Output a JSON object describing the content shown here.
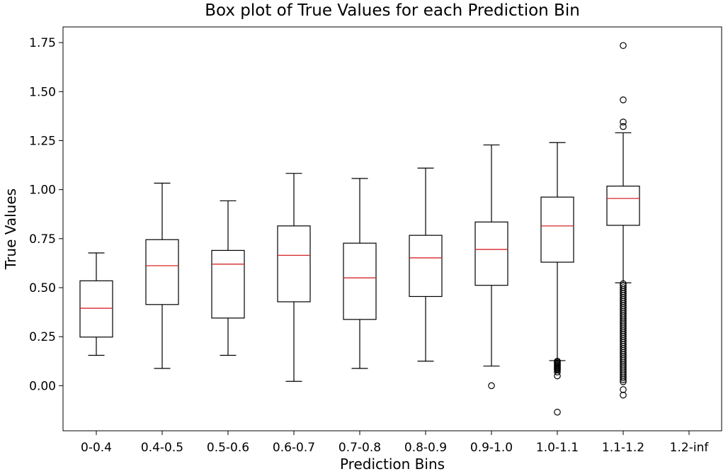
{
  "chart_data": {
    "type": "box",
    "title": "Box plot of True Values for each Prediction Bin",
    "xlabel": "Prediction Bins",
    "ylabel": "True Values",
    "ylim": [
      -0.23,
      1.83
    ],
    "yticks": [
      "0.00",
      "0.25",
      "0.50",
      "0.75",
      "1.00",
      "1.25",
      "1.50",
      "1.75"
    ],
    "ytick_values": [
      0,
      0.25,
      0.5,
      0.75,
      1.0,
      1.25,
      1.5,
      1.75
    ],
    "grid": false,
    "colors": {
      "box": "#000000",
      "median": "#d62728"
    },
    "categories": [
      "0-0.4",
      "0.4-0.5",
      "0.5-0.6",
      "0.6-0.7",
      "0.7-0.8",
      "0.8-0.9",
      "0.9-1.0",
      "1.0-1.1",
      "1.1-1.2",
      "1.2-inf"
    ],
    "boxes": [
      {
        "category": "0-0.4",
        "whisker_low": 0.155,
        "q1": 0.248,
        "median": 0.395,
        "q3": 0.535,
        "whisker_high": 0.677,
        "outliers": []
      },
      {
        "category": "0.4-0.5",
        "whisker_low": 0.088,
        "q1": 0.414,
        "median": 0.612,
        "q3": 0.745,
        "whisker_high": 1.033,
        "outliers": []
      },
      {
        "category": "0.5-0.6",
        "whisker_low": 0.155,
        "q1": 0.345,
        "median": 0.62,
        "q3": 0.69,
        "whisker_high": 0.943,
        "outliers": []
      },
      {
        "category": "0.6-0.7",
        "whisker_low": 0.022,
        "q1": 0.428,
        "median": 0.665,
        "q3": 0.815,
        "whisker_high": 1.083,
        "outliers": []
      },
      {
        "category": "0.7-0.8",
        "whisker_low": 0.088,
        "q1": 0.338,
        "median": 0.55,
        "q3": 0.727,
        "whisker_high": 1.057,
        "outliers": []
      },
      {
        "category": "0.8-0.9",
        "whisker_low": 0.125,
        "q1": 0.455,
        "median": 0.652,
        "q3": 0.767,
        "whisker_high": 1.11,
        "outliers": []
      },
      {
        "category": "0.9-1.0",
        "whisker_low": 0.1,
        "q1": 0.512,
        "median": 0.695,
        "q3": 0.835,
        "whisker_high": 1.228,
        "outliers": [
          0.0
        ]
      },
      {
        "category": "1.0-1.1",
        "whisker_low": 0.128,
        "q1": 0.63,
        "median": 0.815,
        "q3": 0.962,
        "whisker_high": 1.24,
        "outliers": [
          0.125,
          0.12,
          0.115,
          0.11,
          0.105,
          0.1,
          0.095,
          0.09,
          0.085,
          0.08,
          0.07,
          0.05,
          -0.135
        ]
      },
      {
        "category": "1.1-1.2",
        "whisker_low": 0.525,
        "q1": 0.818,
        "median": 0.955,
        "q3": 1.018,
        "whisker_high": 1.29,
        "outliers": [
          1.735,
          1.458,
          1.345,
          1.322,
          0.52,
          0.51,
          0.5,
          0.49,
          0.48,
          0.47,
          0.46,
          0.45,
          0.44,
          0.43,
          0.42,
          0.41,
          0.4,
          0.39,
          0.38,
          0.37,
          0.36,
          0.35,
          0.34,
          0.33,
          0.32,
          0.31,
          0.3,
          0.29,
          0.28,
          0.27,
          0.26,
          0.25,
          0.24,
          0.23,
          0.22,
          0.21,
          0.2,
          0.19,
          0.18,
          0.17,
          0.16,
          0.15,
          0.14,
          0.13,
          0.12,
          0.11,
          0.1,
          0.09,
          0.08,
          0.07,
          0.06,
          0.05,
          0.04,
          0.03,
          0.02,
          -0.02,
          -0.048
        ]
      },
      {
        "category": "1.2-inf",
        "whisker_low": null,
        "q1": null,
        "median": null,
        "q3": null,
        "whisker_high": null,
        "outliers": []
      }
    ]
  }
}
